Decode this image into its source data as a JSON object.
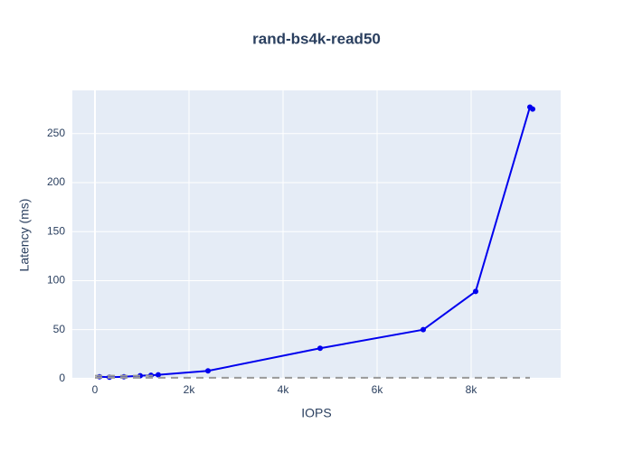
{
  "chart_data": {
    "type": "line",
    "title": "rand-bs4k-read50",
    "x_label": "IOPS",
    "y_label": "Latency (ms)",
    "series": [
      {
        "color": "#0000ee",
        "dash": false,
        "markers": true,
        "x": [
          96,
          308,
          615,
          962,
          1192,
          1346,
          2404,
          4788,
          6981,
          8096,
          9250,
          9308
        ],
        "values": [
          2,
          1.5,
          2,
          3,
          3.5,
          4,
          8,
          31,
          50,
          89,
          277,
          275
        ]
      },
      {
        "color": "#999999",
        "dash": true,
        "markers": false,
        "x": [
          0,
          9250
        ],
        "values": [
          1,
          1
        ]
      },
      {
        "color": "#999999",
        "dash": true,
        "markers": false,
        "x": [
          0,
          1346
        ],
        "values": [
          3,
          3
        ]
      }
    ],
    "xlim": [
      -481,
      9904
    ],
    "ylim": [
      -1,
      294
    ],
    "xticks": [
      0,
      {
        "value": 2000,
        "label": "2k"
      },
      {
        "value": 4000,
        "label": "4k"
      },
      {
        "value": 6000,
        "label": "6k"
      },
      {
        "value": 8000,
        "label": "8k"
      }
    ],
    "yticks": [
      0,
      50,
      100,
      150,
      200,
      250
    ],
    "grid": true
  }
}
